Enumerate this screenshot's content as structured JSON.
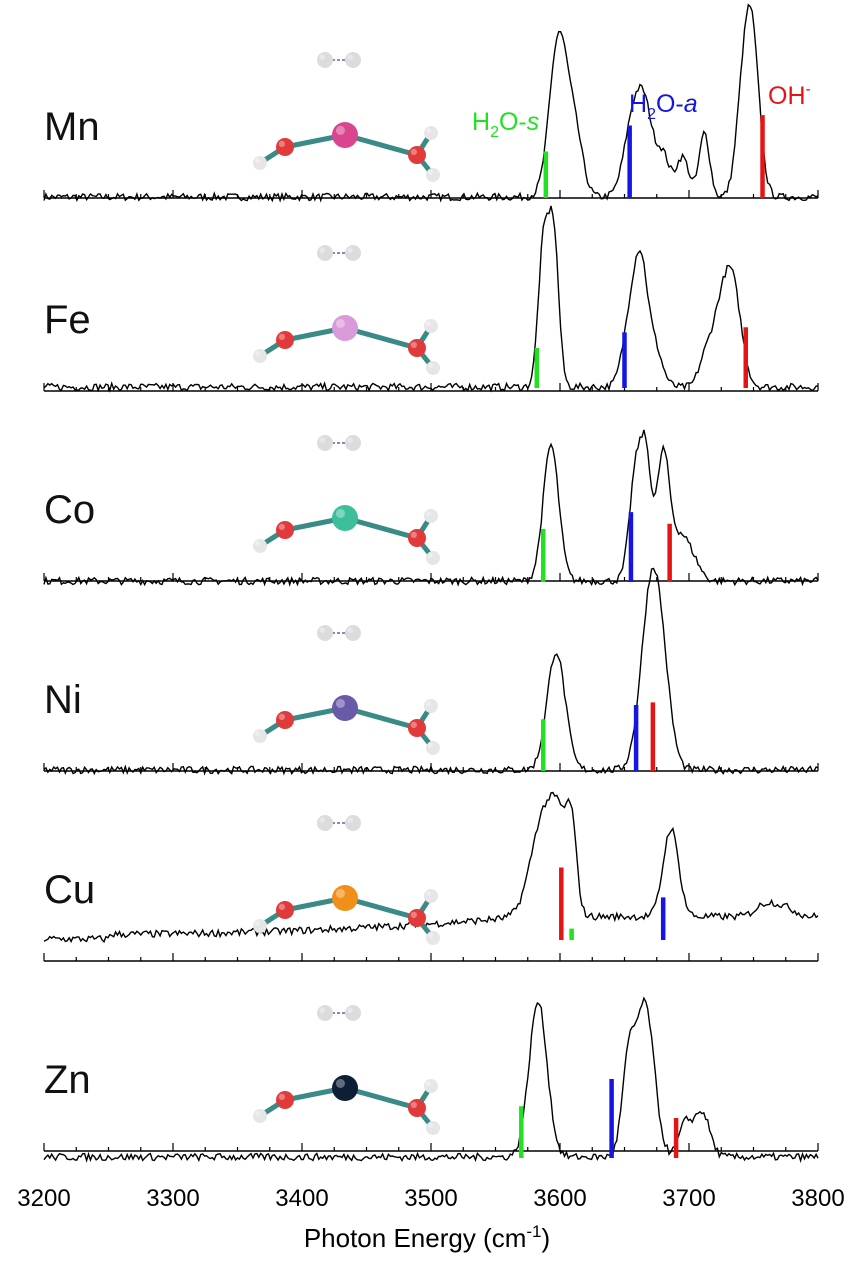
{
  "chart_data": {
    "type": "line",
    "xlabel": "Photon Energy (cm",
    "xlabel_sup": "-1",
    "xlabel_close": ")",
    "xlim": [
      3200,
      3800
    ],
    "x_ticks": [
      3200,
      3300,
      3400,
      3500,
      3600,
      3700,
      3800
    ],
    "x_tick_labels": [
      "3200",
      "3300",
      "3400",
      "3500",
      "3600",
      "3700",
      "3800"
    ],
    "ylabel": "",
    "grid": false,
    "legend": {
      "placement": "top-right",
      "entries": [
        {
          "main": "H",
          "sub": "2",
          "rest": "O-",
          "ital": "s",
          "color": "#22e022"
        },
        {
          "main": "H",
          "sub": "2",
          "rest": "O-",
          "ital": "a",
          "color": "#1515e6"
        },
        {
          "main": "OH",
          "sup": "-",
          "color": "#e61515"
        }
      ]
    },
    "colors": {
      "spectrum": "#000000",
      "h2o_s": "#22e022",
      "h2o_a": "#1515e6",
      "oh": "#e61515"
    },
    "panels": [
      {
        "element": "Mn",
        "atom_color": "#d9468f",
        "peaks": [
          [
            3599,
            1.0,
            7
          ],
          [
            3612,
            0.35,
            6
          ],
          [
            3657,
            0.5,
            7
          ],
          [
            3667,
            0.42,
            6
          ],
          [
            3680,
            0.25,
            5
          ],
          [
            3695,
            0.25,
            5
          ],
          [
            3712,
            0.4,
            4
          ],
          [
            3748,
            1.1,
            6
          ],
          [
            3740,
            0.3,
            5
          ]
        ],
        "sticks": [
          {
            "label": "H2O-s",
            "x": 3589,
            "height": 0.35
          },
          {
            "label": "H2O-a",
            "x": 3654,
            "height": 0.55
          },
          {
            "label": "OH-",
            "x": 3757,
            "height": 0.63
          }
        ]
      },
      {
        "element": "Fe",
        "atom_color": "#d89ad8",
        "peaks": [
          [
            3587,
            0.85,
            4
          ],
          [
            3595,
            0.95,
            4
          ],
          [
            3655,
            0.45,
            6
          ],
          [
            3663,
            0.6,
            5
          ],
          [
            3673,
            0.25,
            6
          ],
          [
            3712,
            0.15,
            5
          ],
          [
            3733,
            0.68,
            7
          ],
          [
            3722,
            0.3,
            6
          ]
        ],
        "sticks": [
          {
            "label": "H2O-s",
            "x": 3582,
            "height": 0.3
          },
          {
            "label": "H2O-a",
            "x": 3650,
            "height": 0.42
          },
          {
            "label": "OH-",
            "x": 3744,
            "height": 0.46
          }
        ]
      },
      {
        "element": "Co",
        "atom_color": "#3cbf9a",
        "peaks": [
          [
            3593,
            0.85,
            6
          ],
          [
            3659,
            0.7,
            5
          ],
          [
            3667,
            0.65,
            4
          ],
          [
            3680,
            0.8,
            5
          ],
          [
            3693,
            0.25,
            6
          ],
          [
            3703,
            0.12,
            6
          ]
        ],
        "sticks": [
          {
            "label": "H2O-s",
            "x": 3587,
            "height": 0.4
          },
          {
            "label": "H2O-a",
            "x": 3655,
            "height": 0.53
          },
          {
            "label": "OH-",
            "x": 3685,
            "height": 0.44
          }
        ]
      },
      {
        "element": "Ni",
        "atom_color": "#6a58a8",
        "peaks": [
          [
            3597,
            0.74,
            7
          ],
          [
            3671,
            1.12,
            8
          ],
          [
            3680,
            0.3,
            7
          ]
        ],
        "sticks": [
          {
            "label": "H2O-s",
            "x": 3587,
            "height": 0.39
          },
          {
            "label": "H2O-a",
            "x": 3659,
            "height": 0.5
          },
          {
            "label": "OH-",
            "x": 3672,
            "height": 0.52
          }
        ]
      },
      {
        "element": "Cu",
        "atom_color": "#f0901a",
        "peaks": [
          [
            3588,
            0.65,
            10
          ],
          [
            3600,
            0.35,
            6
          ],
          [
            3609,
            0.5,
            4
          ],
          [
            3686,
            0.55,
            6
          ],
          [
            3760,
            0.08,
            8
          ],
          [
            3775,
            0.05,
            8
          ]
        ],
        "baseline_ramp": [
          3250,
          3575,
          0.03,
          0.14
        ],
        "sticks": [
          {
            "label": "OH-",
            "x": 3601,
            "height": 0.55
          },
          {
            "label": "H2O-s",
            "x": 3609,
            "height": 0.08
          },
          {
            "label": "H2O-a",
            "x": 3680,
            "height": 0.32
          }
        ]
      },
      {
        "element": "Zn",
        "atom_color": "#0d1e35",
        "peaks": [
          [
            3583,
            0.97,
            7
          ],
          [
            3653,
            0.55,
            5
          ],
          [
            3666,
            0.95,
            7
          ],
          [
            3697,
            0.2,
            5
          ],
          [
            3710,
            0.28,
            6
          ]
        ],
        "sticks": [
          {
            "label": "H2O-s",
            "x": 3570,
            "height": 0.39
          },
          {
            "label": "H2O-a",
            "x": 3640,
            "height": 0.6
          },
          {
            "label": "OH-",
            "x": 3690,
            "height": 0.3
          }
        ]
      }
    ]
  }
}
